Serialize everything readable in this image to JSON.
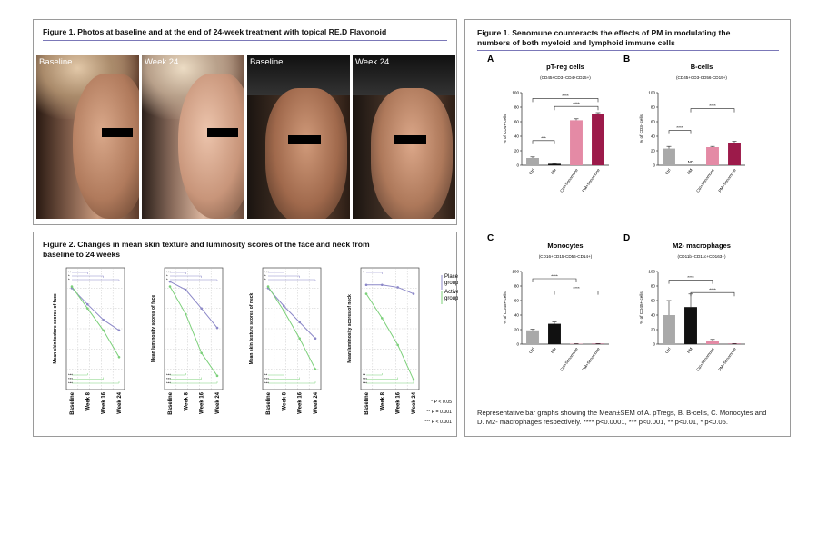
{
  "fig1_photos": {
    "title": "Figure 1. Photos at baseline and at the end of 24-week treatment with topical RE.D Flavonoid",
    "labels": [
      "Baseline",
      "Week 24",
      "Baseline",
      "Week 24"
    ]
  },
  "fig2_texture": {
    "title_line1": "Figure 2. Changes in mean skin texture and luminosity scores of the face and neck from",
    "title_line2": "baseline to 24 weeks",
    "ylabels": [
      "Mean skin texture scores of face",
      "Mean luminosity scores of face",
      "Mean skin texture scores of neck",
      "Mean luminosity scores of neck"
    ],
    "xticks": [
      "Baseline",
      "Week 8",
      "Week 16",
      "Week 24"
    ],
    "legend": {
      "placebo_line1": "Placebo",
      "placebo_line2": "group",
      "active_line1": "Active",
      "active_line2": "group"
    },
    "pvalues": [
      "* P < 0.05",
      "** P = 0.001",
      "*** P < 0.001"
    ]
  },
  "fig1_senomune": {
    "title_line1": "Figure 1. Senomune counteracts the effects of PM in modulating the",
    "title_line2": "numbers of both myeloid and lymphoid immune cells",
    "caption_line1": "Representative bar graphs showing the Mean±SEM of A. pTregs, B. B-cells, C. Monocytes and",
    "caption_line2": "D. M2- macrophages respectively. **** p<0.0001, *** p<0.001, ** p<0.01, * p<0.05."
  },
  "chart_data": [
    {
      "type": "bar",
      "panel": "A",
      "title": "pT-reg cells",
      "subtitle": "(CD45+CD3+CD4+CD25+)",
      "ylabel": "% of CD4+ cells",
      "ylim": [
        0,
        100
      ],
      "yticks": [
        0,
        20,
        40,
        60,
        80,
        100
      ],
      "categories": [
        "Ctrl",
        "PM",
        "Ctrl+Senomune",
        "PM+Senomune"
      ],
      "values": [
        10,
        2,
        62,
        71
      ],
      "errors": [
        1.5,
        0.5,
        2,
        1.5
      ],
      "colors": [
        "#a9a9a9",
        "#111111",
        "#e48aa5",
        "#9c1a4a"
      ],
      "na_labels": [
        "",
        "",
        "",
        ""
      ],
      "brackets": [
        {
          "from": 0,
          "to": 1,
          "level": 34,
          "label": "***"
        },
        {
          "from": 0,
          "to": 3,
          "level": 92,
          "label": "****"
        },
        {
          "from": 1,
          "to": 3,
          "level": 81,
          "label": "****"
        }
      ]
    },
    {
      "type": "bar",
      "panel": "B",
      "title": "B-cells",
      "subtitle": "(CD45+CD3-CD56-CD19+)",
      "ylabel": "% of CD3- cells",
      "ylim": [
        0,
        100
      ],
      "yticks": [
        0,
        20,
        40,
        60,
        80,
        100
      ],
      "categories": [
        "Ctrl",
        "PM",
        "Ctrl+Senomune",
        "PM+Senomune"
      ],
      "values": [
        23,
        0,
        25,
        30
      ],
      "errors": [
        3,
        0,
        1,
        3
      ],
      "colors": [
        "#a9a9a9",
        "#111111",
        "#e48aa5",
        "#9c1a4a"
      ],
      "na_labels": [
        "",
        "ND",
        "",
        ""
      ],
      "brackets": [
        {
          "from": 0,
          "to": 1,
          "level": 48,
          "label": "****"
        },
        {
          "from": 1,
          "to": 3,
          "level": 78,
          "label": "****"
        }
      ]
    },
    {
      "type": "bar",
      "panel": "C",
      "title": "Monocytes",
      "subtitle": "(CD16+CD15-CD56-CD14+)",
      "ylabel": "% of CD45+ cells",
      "ylim": [
        0,
        100
      ],
      "yticks": [
        0,
        20,
        40,
        60,
        80,
        100
      ],
      "categories": [
        "Ctrl",
        "PM",
        "Ctrl+Senomune",
        "PM+Senomune"
      ],
      "values": [
        19,
        28,
        0.5,
        0.5
      ],
      "errors": [
        1.5,
        2.5,
        0.3,
        0.3
      ],
      "colors": [
        "#a9a9a9",
        "#111111",
        "#e48aa5",
        "#9c1a4a"
      ],
      "na_labels": [
        "",
        "",
        "",
        ""
      ],
      "brackets": [
        {
          "from": 0,
          "to": 2,
          "level": 90,
          "label": "****"
        },
        {
          "from": 1,
          "to": 3,
          "level": 73,
          "label": "****"
        }
      ]
    },
    {
      "type": "bar",
      "panel": "D",
      "title": "M2- macrophages",
      "subtitle": "(CD11b+CD11c+CD163+)",
      "ylabel": "% of CD45+ cells",
      "ylim": [
        0,
        100
      ],
      "yticks": [
        0,
        20,
        40,
        60,
        80,
        100
      ],
      "categories": [
        "Ctrl",
        "PM",
        "Ctrl+Senomune",
        "PM+Senomune"
      ],
      "values": [
        40,
        51,
        5,
        0.5
      ],
      "errors": [
        20,
        18,
        1.5,
        0.3
      ],
      "colors": [
        "#a9a9a9",
        "#111111",
        "#e48aa5",
        "#9c1a4a"
      ],
      "na_labels": [
        "",
        "",
        "",
        ""
      ],
      "brackets": [
        {
          "from": 0,
          "to": 2,
          "level": 88,
          "label": "****"
        },
        {
          "from": 1,
          "to": 3,
          "level": 71,
          "label": "****"
        }
      ]
    },
    {
      "type": "line",
      "panel": "texture-face",
      "ylabel": "Mean skin texture scores of face",
      "x": [
        "Baseline",
        "Week 8",
        "Week 16",
        "Week 24"
      ],
      "series": [
        {
          "name": "Placebo group",
          "values": [
            7.5,
            5.5,
            3.6,
            2.3
          ],
          "color": "#8c88c8"
        },
        {
          "name": "Active group",
          "values": [
            7.7,
            5.0,
            2.3,
            -1.0
          ],
          "color": "#7cd07a"
        }
      ],
      "ylim": [
        -5,
        10
      ]
    },
    {
      "type": "line",
      "panel": "luminosity-face",
      "ylabel": "Mean luminosity scores of face",
      "x": [
        "Baseline",
        "Week 8",
        "Week 16",
        "Week 24"
      ],
      "series": [
        {
          "name": "Placebo group",
          "values": [
            8.3,
            7.3,
            5.0,
            2.6
          ],
          "color": "#8c88c8"
        },
        {
          "name": "Active group",
          "values": [
            7.7,
            4.3,
            -0.5,
            -3.3
          ],
          "color": "#7cd07a"
        }
      ],
      "ylim": [
        -5,
        10
      ]
    },
    {
      "type": "line",
      "panel": "texture-neck",
      "ylabel": "Mean skin texture scores of neck",
      "x": [
        "Baseline",
        "Week 8",
        "Week 16",
        "Week 24"
      ],
      "series": [
        {
          "name": "Placebo group",
          "values": [
            7.5,
            5.3,
            3.3,
            1.3
          ],
          "color": "#8c88c8"
        },
        {
          "name": "Active group",
          "values": [
            7.7,
            4.7,
            1.3,
            -2.5
          ],
          "color": "#7cd07a"
        }
      ],
      "ylim": [
        -5,
        10
      ]
    },
    {
      "type": "line",
      "panel": "luminosity-neck",
      "ylabel": "Mean luminosity scores of neck",
      "x": [
        "Baseline",
        "Week 8",
        "Week 16",
        "Week 24"
      ],
      "series": [
        {
          "name": "Placebo group",
          "values": [
            7.9,
            7.9,
            7.6,
            6.8
          ],
          "color": "#8c88c8"
        },
        {
          "name": "Active group",
          "values": [
            6.8,
            3.8,
            0.5,
            -3.8
          ],
          "color": "#7cd07a"
        }
      ],
      "ylim": [
        -5,
        10
      ]
    }
  ]
}
